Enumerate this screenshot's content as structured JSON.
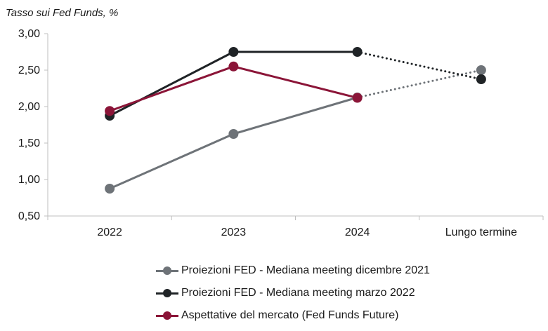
{
  "chart_data": {
    "type": "line",
    "ylabel": "Tasso sui Fed Funds, %",
    "xlabel": "",
    "categories": [
      "2022",
      "2023",
      "2024",
      "Lungo termine"
    ],
    "ylim": [
      0.5,
      3.0
    ],
    "yticks": [
      "0,50",
      "1,00",
      "1,50",
      "2,00",
      "2,50",
      "3,00"
    ],
    "grid": false,
    "legend_position": "bottom",
    "series": [
      {
        "name": "Proiezioni FED - Mediana meeting dicembre 2021",
        "color": "#6e7378",
        "values": [
          0.875,
          1.625,
          2.125,
          2.5
        ],
        "dotted_last_segment": true
      },
      {
        "name": "Proiezioni FED - Mediana meeting marzo 2022",
        "color": "#1f2326",
        "values": [
          1.875,
          2.75,
          2.75,
          2.375
        ],
        "dotted_last_segment": true
      },
      {
        "name": "Aspettative del mercato (Fed Funds Future)",
        "color": "#8b1538",
        "values": [
          1.94,
          2.55,
          2.12,
          null
        ],
        "dotted_last_segment": false
      }
    ]
  }
}
